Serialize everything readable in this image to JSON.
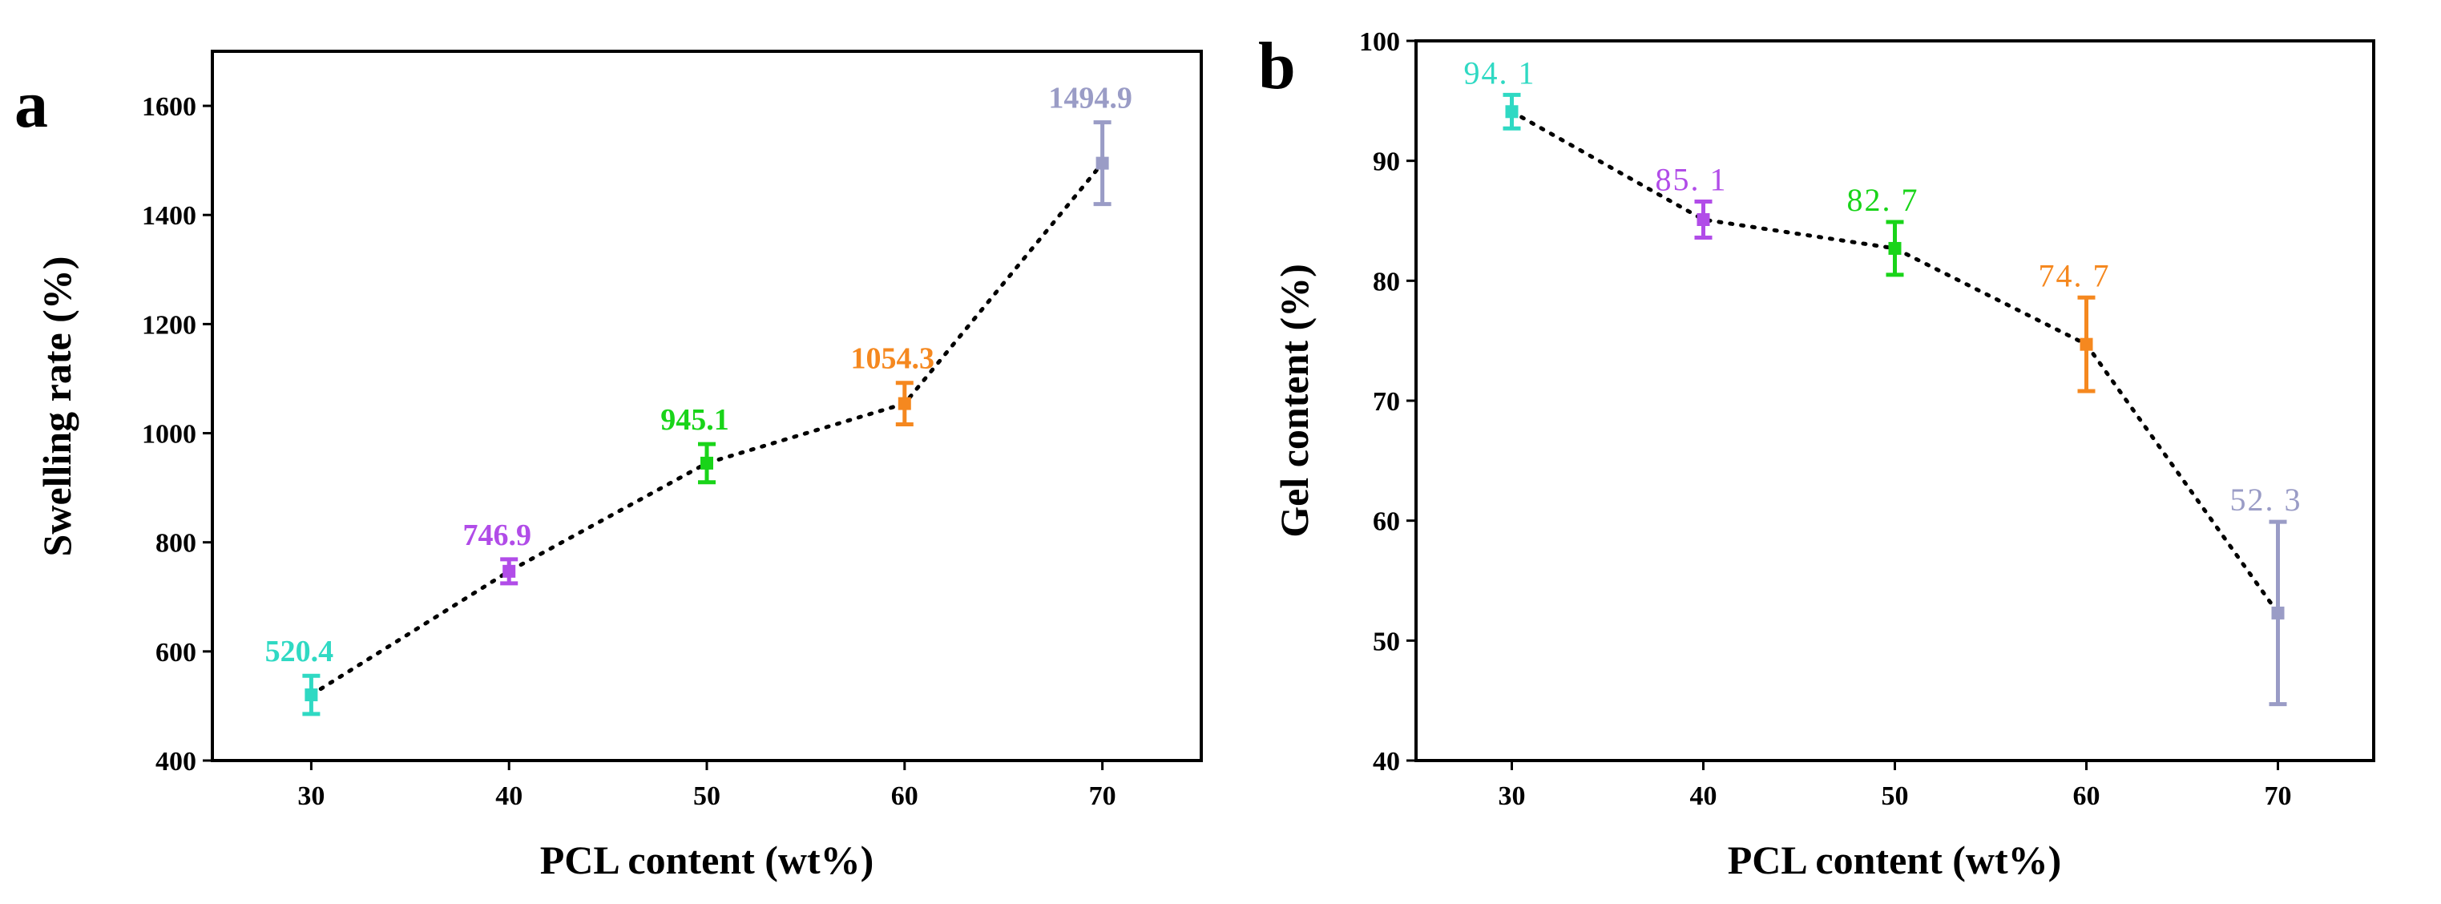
{
  "chart_data": [
    {
      "panel": "a",
      "type": "scatter",
      "xlabel": "PCL content (wt%)",
      "ylabel": "Swelling rate (%)",
      "xlim": [
        25,
        75
      ],
      "ylim": [
        400,
        1700
      ],
      "xticks": [
        30,
        40,
        50,
        60,
        70
      ],
      "yticks": [
        400,
        600,
        800,
        1000,
        1200,
        1400,
        1600
      ],
      "x": [
        30,
        40,
        50,
        60,
        70
      ],
      "values": [
        520.4,
        746.9,
        945.1,
        1054.3,
        1494.9
      ],
      "errors": [
        35,
        22,
        35,
        38,
        75
      ],
      "labels": [
        "520.4",
        "746.9",
        "945.1",
        "1054.3",
        "1494.9"
      ],
      "colors": [
        "#2fd9c3",
        "#b14ce8",
        "#19d419",
        "#f5881f",
        "#9a9cc6"
      ],
      "trend_line": "dotted, black",
      "grid": false
    },
    {
      "panel": "b",
      "type": "scatter",
      "xlabel": "PCL content (wt%)",
      "ylabel": "Gel content (%)",
      "xlim": [
        25,
        75
      ],
      "ylim": [
        40,
        100
      ],
      "xticks": [
        30,
        40,
        50,
        60,
        70
      ],
      "yticks": [
        40,
        50,
        60,
        70,
        80,
        90,
        100
      ],
      "x": [
        30,
        40,
        50,
        60,
        70
      ],
      "values": [
        94.1,
        85.1,
        82.7,
        74.7,
        52.3
      ],
      "errors": [
        1.4,
        1.5,
        2.2,
        3.9,
        7.6
      ],
      "labels": [
        "94. 1",
        "85. 1",
        "82. 7",
        "74. 7",
        "52. 3"
      ],
      "colors": [
        "#2fd9c3",
        "#b14ce8",
        "#19d419",
        "#f5881f",
        "#9a9cc6"
      ],
      "trend_line": "dotted, black",
      "grid": false
    }
  ]
}
